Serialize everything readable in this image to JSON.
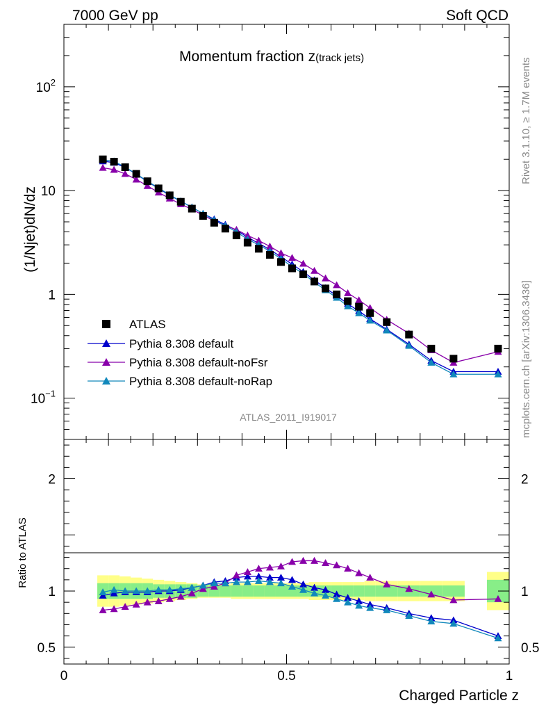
{
  "header": {
    "left_label": "7000 GeV pp",
    "right_label": "Soft QCD"
  },
  "side_labels": {
    "rivet": "Rivet 3.1.10, ≥ 1.7M events",
    "mcplots": "mcplots.cern.ch [arXiv:1306.3436]"
  },
  "chart_data": {
    "type": "scatter",
    "title_main": "Momentum fraction z",
    "title_sub": "(track jets)",
    "analysis_tag": "ATLAS_2011_I919017",
    "xlabel": "Charged Particle z",
    "ylabel": "(1/Njet)dN/dz",
    "ratio_ylabel": "Ratio to ATLAS",
    "xlim": [
      0,
      1
    ],
    "ylim": [
      0.04,
      400
    ],
    "yscale": "log",
    "ratio_ylim": [
      0.35,
      2.35
    ],
    "x_ticks": [
      {
        "value": 0,
        "label": "0"
      },
      {
        "value": 0.5,
        "label": "0.5"
      },
      {
        "value": 1,
        "label": "1"
      }
    ],
    "y_ticks": [
      {
        "value": 0.1,
        "base": "10",
        "exp": "−1"
      },
      {
        "value": 1,
        "base": "1",
        "exp": ""
      },
      {
        "value": 10,
        "base": "10",
        "exp": ""
      },
      {
        "value": 100,
        "base": "10",
        "exp": "2"
      }
    ],
    "ratio_ticks": [
      {
        "value": 0.5,
        "label": "0.5"
      },
      {
        "value": 1,
        "label": "1"
      },
      {
        "value": 2,
        "label": "2"
      }
    ],
    "x": [
      0.0875,
      0.1125,
      0.1375,
      0.1625,
      0.1875,
      0.2125,
      0.2375,
      0.2625,
      0.2875,
      0.3125,
      0.3375,
      0.3625,
      0.3875,
      0.4125,
      0.4375,
      0.4625,
      0.4875,
      0.5125,
      0.5375,
      0.5625,
      0.5875,
      0.6125,
      0.6375,
      0.6625,
      0.6875,
      0.725,
      0.775,
      0.825,
      0.875,
      0.975
    ],
    "x_bins": [
      [
        0.075,
        0.1
      ],
      [
        0.1,
        0.125
      ],
      [
        0.125,
        0.15
      ],
      [
        0.15,
        0.175
      ],
      [
        0.175,
        0.2
      ],
      [
        0.2,
        0.225
      ],
      [
        0.225,
        0.25
      ],
      [
        0.25,
        0.275
      ],
      [
        0.275,
        0.3
      ],
      [
        0.3,
        0.325
      ],
      [
        0.325,
        0.35
      ],
      [
        0.35,
        0.375
      ],
      [
        0.375,
        0.4
      ],
      [
        0.4,
        0.425
      ],
      [
        0.425,
        0.45
      ],
      [
        0.45,
        0.475
      ],
      [
        0.475,
        0.5
      ],
      [
        0.5,
        0.525
      ],
      [
        0.525,
        0.55
      ],
      [
        0.55,
        0.575
      ],
      [
        0.575,
        0.6
      ],
      [
        0.6,
        0.625
      ],
      [
        0.625,
        0.65
      ],
      [
        0.65,
        0.675
      ],
      [
        0.675,
        0.7
      ],
      [
        0.7,
        0.75
      ],
      [
        0.75,
        0.8
      ],
      [
        0.8,
        0.85
      ],
      [
        0.85,
        0.9
      ],
      [
        0.95,
        1.0
      ]
    ],
    "band_inner": [
      0.07,
      0.07,
      0.07,
      0.07,
      0.07,
      0.06,
      0.06,
      0.06,
      0.06,
      0.05,
      0.05,
      0.05,
      0.05,
      0.05,
      0.05,
      0.05,
      0.05,
      0.05,
      0.05,
      0.05,
      0.05,
      0.05,
      0.05,
      0.05,
      0.05,
      0.05,
      0.05,
      0.05,
      0.05,
      0.1
    ],
    "band_outer": [
      0.14,
      0.14,
      0.13,
      0.12,
      0.11,
      0.1,
      0.09,
      0.08,
      0.07,
      0.06,
      0.06,
      0.06,
      0.07,
      0.07,
      0.07,
      0.07,
      0.07,
      0.07,
      0.07,
      0.08,
      0.08,
      0.08,
      0.08,
      0.08,
      0.09,
      0.09,
      0.09,
      0.09,
      0.09,
      0.17
    ],
    "series": [
      {
        "name": "ATLAS",
        "marker": "square",
        "color": "#000000",
        "values": [
          20.0,
          19.0,
          16.8,
          14.5,
          12.3,
          10.5,
          9.0,
          7.8,
          6.7,
          5.7,
          4.9,
          4.3,
          3.7,
          3.15,
          2.75,
          2.4,
          2.05,
          1.78,
          1.56,
          1.33,
          1.14,
          1.0,
          0.86,
          0.76,
          0.66,
          0.54,
          0.41,
          0.3,
          0.24,
          0.3
        ]
      },
      {
        "name": "Pythia 8.308 default",
        "marker": "triangle",
        "color": "#0000cc",
        "values": [
          19.2,
          18.6,
          16.7,
          14.4,
          12.2,
          10.5,
          9.0,
          7.9,
          6.9,
          6.0,
          5.3,
          4.7,
          4.15,
          3.55,
          3.1,
          2.7,
          2.3,
          1.95,
          1.65,
          1.37,
          1.15,
          0.97,
          0.81,
          0.69,
          0.58,
          0.46,
          0.33,
          0.23,
          0.18,
          0.18
        ]
      },
      {
        "name": "Pythia 8.308 default-noFsr",
        "marker": "triangle",
        "color": "#8800aa",
        "values": [
          16.6,
          15.9,
          14.5,
          12.8,
          11.1,
          9.6,
          8.4,
          7.4,
          6.6,
          5.8,
          5.1,
          4.6,
          4.2,
          3.7,
          3.3,
          2.9,
          2.5,
          2.25,
          1.98,
          1.69,
          1.43,
          1.23,
          1.03,
          0.88,
          0.74,
          0.57,
          0.42,
          0.29,
          0.22,
          0.28
        ]
      },
      {
        "name": "Pythia 8.308 default-noRap",
        "marker": "triangle",
        "color": "#1188bb",
        "values": [
          19.8,
          19.2,
          16.8,
          14.5,
          12.3,
          10.6,
          9.1,
          7.9,
          6.9,
          6.0,
          5.2,
          4.6,
          4.0,
          3.4,
          3.0,
          2.6,
          2.2,
          1.85,
          1.58,
          1.31,
          1.1,
          0.93,
          0.77,
          0.66,
          0.56,
          0.45,
          0.32,
          0.22,
          0.17,
          0.17
        ]
      }
    ],
    "ratios": [
      {
        "name": "Pythia 8.308 default",
        "values": [
          0.96,
          0.98,
          0.99,
          0.99,
          0.99,
          1.0,
          1.0,
          1.01,
          1.03,
          1.05,
          1.08,
          1.09,
          1.12,
          1.13,
          1.13,
          1.12,
          1.12,
          1.1,
          1.06,
          1.03,
          1.01,
          0.97,
          0.94,
          0.91,
          0.88,
          0.85,
          0.8,
          0.76,
          0.74,
          0.6
        ]
      },
      {
        "name": "Pythia 8.308 default-noFsr",
        "values": [
          0.83,
          0.84,
          0.86,
          0.88,
          0.9,
          0.91,
          0.93,
          0.95,
          0.98,
          1.02,
          1.04,
          1.07,
          1.14,
          1.17,
          1.2,
          1.21,
          1.22,
          1.26,
          1.27,
          1.27,
          1.25,
          1.23,
          1.2,
          1.16,
          1.12,
          1.06,
          1.02,
          0.97,
          0.92,
          0.93
        ]
      },
      {
        "name": "Pythia 8.308 default-noRap",
        "values": [
          0.99,
          1.01,
          1.0,
          1.0,
          1.0,
          1.01,
          1.01,
          1.02,
          1.03,
          1.05,
          1.07,
          1.07,
          1.08,
          1.08,
          1.09,
          1.08,
          1.07,
          1.04,
          1.01,
          0.98,
          0.96,
          0.93,
          0.9,
          0.87,
          0.85,
          0.83,
          0.78,
          0.73,
          0.71,
          0.58
        ]
      }
    ],
    "legend_position": "lower-left"
  },
  "colors": {
    "band_inner": "#88ee88",
    "band_outer": "#ffff88"
  }
}
